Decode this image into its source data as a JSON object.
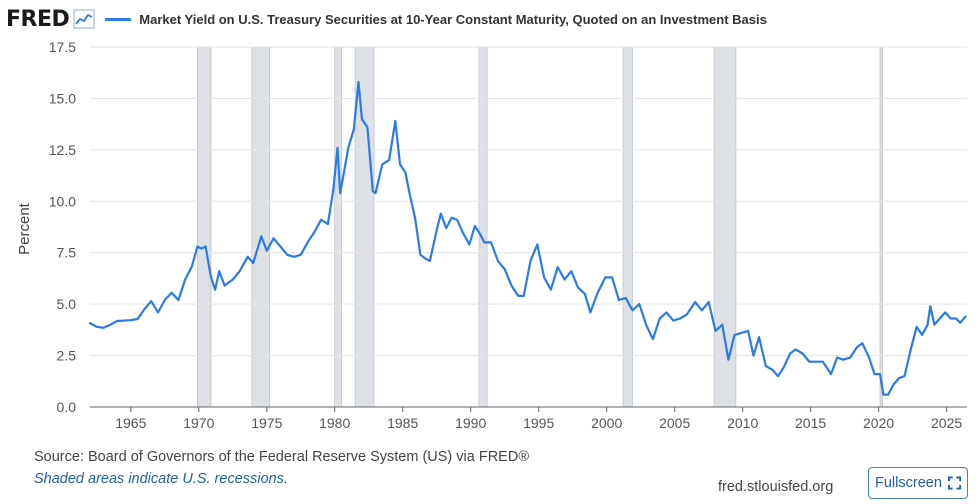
{
  "header": {
    "logo": "FRED",
    "logo_icon": "trend-chart-icon",
    "series_title": "Market Yield on U.S. Treasury Securities at 10-Year Constant Maturity, Quoted on an Investment Basis"
  },
  "colors": {
    "series": "#2c7be5",
    "recession": "#dde1e6",
    "grid": "#e3e3e3"
  },
  "footer": {
    "source": "Source: Board of Governors of the Federal Reserve System (US) via FRED®",
    "note": "Shaded areas indicate U.S. recessions.",
    "site": "fred.stlouisfed.org",
    "fullscreen_label": "Fullscreen",
    "fullscreen_icon": "expand-icon"
  },
  "chart_data": {
    "type": "line",
    "title": "Market Yield on U.S. Treasury Securities at 10-Year Constant Maturity, Quoted on an Investment Basis",
    "ylabel": "Percent",
    "xlabel": "",
    "ylim": [
      0,
      17.5
    ],
    "xlim": [
      1962.0,
      2026.5
    ],
    "grid": true,
    "yticks": [
      "0.0",
      "2.5",
      "5.0",
      "7.5",
      "10.0",
      "12.5",
      "15.0",
      "17.5"
    ],
    "xticks": [
      "1965",
      "1970",
      "1975",
      "1980",
      "1985",
      "1990",
      "1995",
      "2000",
      "2005",
      "2010",
      "2015",
      "2020",
      "2025"
    ],
    "recessions": [
      [
        1969.9,
        1970.9
      ],
      [
        1973.9,
        1975.2
      ],
      [
        1980.0,
        1980.5
      ],
      [
        1981.5,
        1982.9
      ],
      [
        1990.6,
        1991.2
      ],
      [
        2001.2,
        2001.9
      ],
      [
        2007.9,
        2009.5
      ],
      [
        2020.1,
        2020.3
      ]
    ],
    "series": [
      {
        "name": "Market Yield on U.S. Treasury Securities at 10-Year Constant Maturity, Quoted on an Investment Basis",
        "x": [
          1962.0,
          1962.5,
          1963.0,
          1963.5,
          1964.0,
          1964.5,
          1965.0,
          1965.5,
          1966.0,
          1966.5,
          1967.0,
          1967.5,
          1968.0,
          1968.5,
          1969.0,
          1969.5,
          1969.9,
          1970.2,
          1970.5,
          1970.9,
          1971.2,
          1971.5,
          1971.9,
          1972.5,
          1973.0,
          1973.6,
          1974.0,
          1974.6,
          1975.0,
          1975.5,
          1976.0,
          1976.5,
          1977.0,
          1977.5,
          1978.0,
          1978.5,
          1979.0,
          1979.5,
          1979.9,
          1980.2,
          1980.4,
          1980.7,
          1981.0,
          1981.4,
          1981.75,
          1982.0,
          1982.4,
          1982.8,
          1983.0,
          1983.5,
          1984.0,
          1984.45,
          1984.8,
          1985.2,
          1985.5,
          1985.9,
          1986.3,
          1986.7,
          1987.0,
          1987.5,
          1987.8,
          1988.2,
          1988.6,
          1989.0,
          1989.4,
          1989.9,
          1990.3,
          1990.7,
          1991.0,
          1991.5,
          1992.0,
          1992.5,
          1993.0,
          1993.5,
          1993.9,
          1994.4,
          1994.9,
          1995.4,
          1995.9,
          1996.4,
          1996.9,
          1997.4,
          1997.9,
          1998.4,
          1998.8,
          1999.3,
          1999.9,
          2000.4,
          2000.9,
          2001.4,
          2001.9,
          2002.4,
          2002.9,
          2003.4,
          2003.9,
          2004.4,
          2004.9,
          2005.4,
          2005.9,
          2006.5,
          2007.0,
          2007.5,
          2008.0,
          2008.5,
          2008.95,
          2009.4,
          2009.9,
          2010.4,
          2010.8,
          2011.2,
          2011.7,
          2012.2,
          2012.6,
          2013.0,
          2013.5,
          2013.9,
          2014.4,
          2014.9,
          2015.4,
          2015.9,
          2016.5,
          2016.95,
          2017.4,
          2017.9,
          2018.4,
          2018.8,
          2019.3,
          2019.7,
          2020.1,
          2020.35,
          2020.7,
          2021.1,
          2021.5,
          2021.9,
          2022.4,
          2022.8,
          2023.2,
          2023.6,
          2023.8,
          2024.1,
          2024.5,
          2024.9,
          2025.3,
          2025.7,
          2026.0,
          2026.4
        ],
        "values": [
          4.08,
          3.9,
          3.85,
          4.0,
          4.18,
          4.2,
          4.22,
          4.28,
          4.75,
          5.15,
          4.6,
          5.2,
          5.55,
          5.2,
          6.2,
          6.85,
          7.8,
          7.7,
          7.8,
          6.3,
          5.7,
          6.6,
          5.9,
          6.2,
          6.6,
          7.3,
          7.0,
          8.3,
          7.6,
          8.2,
          7.8,
          7.4,
          7.3,
          7.4,
          8.0,
          8.5,
          9.1,
          8.9,
          10.6,
          12.6,
          10.4,
          11.5,
          12.6,
          13.5,
          15.8,
          14.0,
          13.6,
          10.5,
          10.4,
          11.8,
          12.0,
          13.9,
          11.8,
          11.4,
          10.4,
          9.2,
          7.4,
          7.2,
          7.1,
          8.6,
          9.4,
          8.7,
          9.2,
          9.1,
          8.5,
          7.9,
          8.8,
          8.4,
          8.0,
          8.0,
          7.1,
          6.7,
          5.9,
          5.4,
          5.4,
          7.1,
          7.9,
          6.3,
          5.7,
          6.8,
          6.2,
          6.6,
          5.8,
          5.5,
          4.6,
          5.5,
          6.3,
          6.3,
          5.2,
          5.3,
          4.7,
          5.0,
          4.0,
          3.3,
          4.3,
          4.6,
          4.2,
          4.3,
          4.5,
          5.1,
          4.7,
          5.1,
          3.7,
          4.0,
          2.3,
          3.5,
          3.6,
          3.7,
          2.5,
          3.4,
          2.0,
          1.8,
          1.5,
          1.9,
          2.6,
          2.8,
          2.6,
          2.2,
          2.2,
          2.2,
          1.6,
          2.4,
          2.3,
          2.4,
          2.9,
          3.1,
          2.4,
          1.6,
          1.6,
          0.6,
          0.6,
          1.1,
          1.4,
          1.5,
          2.9,
          3.9,
          3.5,
          4.0,
          4.9,
          4.0,
          4.3,
          4.6,
          4.3,
          4.3,
          4.1,
          4.4
        ]
      }
    ]
  }
}
